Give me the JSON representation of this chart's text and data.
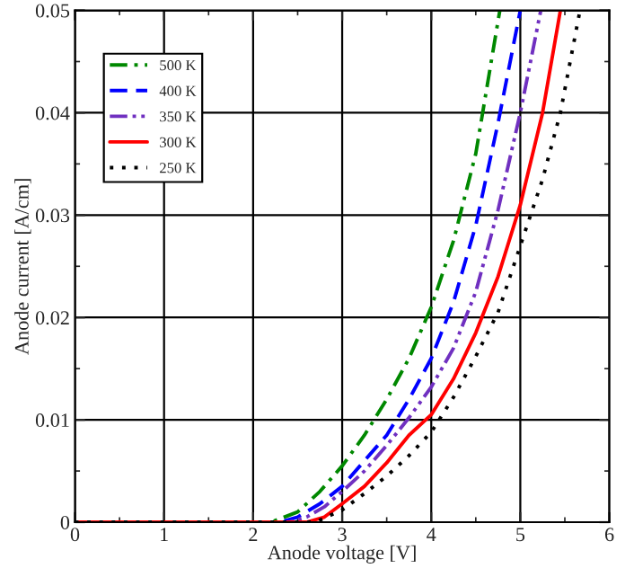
{
  "chart_data": {
    "type": "line",
    "xlabel": "Anode voltage [V]",
    "ylabel": "Anode current [A/cm]",
    "xlim": [
      0,
      6
    ],
    "ylim": [
      0,
      0.05
    ],
    "xticks": [
      0,
      1,
      2,
      3,
      4,
      5,
      6
    ],
    "yticks": [
      0,
      0.01,
      0.02,
      0.03,
      0.04,
      0.05
    ],
    "grid": true,
    "legend": "top left",
    "series": [
      {
        "name": "500 K",
        "color": "#008800",
        "line_style": "dashdot",
        "x": [
          0,
          2.2,
          2.5,
          2.75,
          3.0,
          3.25,
          3.5,
          3.75,
          4.0,
          4.25,
          4.5,
          4.77
        ],
        "values": [
          0,
          0,
          0.001,
          0.003,
          0.0055,
          0.0085,
          0.012,
          0.016,
          0.021,
          0.0275,
          0.036,
          0.05
        ]
      },
      {
        "name": "400 K",
        "color": "#0000ff",
        "line_style": "dashed",
        "x": [
          0,
          2.3,
          2.5,
          2.75,
          3.0,
          3.25,
          3.5,
          3.75,
          4.0,
          4.25,
          4.5,
          4.75,
          5.0
        ],
        "values": [
          0,
          0,
          0.0005,
          0.0018,
          0.0035,
          0.006,
          0.0085,
          0.012,
          0.016,
          0.0215,
          0.029,
          0.039,
          0.05
        ]
      },
      {
        "name": "350 K",
        "color": "#7030c0",
        "line_style": "dashdotdot",
        "x": [
          0,
          2.4,
          2.6,
          2.8,
          3.0,
          3.25,
          3.5,
          3.75,
          4.0,
          4.25,
          4.5,
          4.75,
          5.0,
          5.23
        ],
        "values": [
          0,
          0,
          0.0005,
          0.0015,
          0.003,
          0.005,
          0.0075,
          0.0102,
          0.0132,
          0.017,
          0.0225,
          0.0305,
          0.04,
          0.05
        ]
      },
      {
        "name": "300 K",
        "color": "#ff0000",
        "line_style": "solid",
        "x": [
          0,
          2.6,
          2.8,
          3.0,
          3.25,
          3.5,
          3.75,
          4.0,
          4.25,
          4.5,
          4.75,
          5.0,
          5.25,
          5.45
        ],
        "values": [
          0,
          0,
          0.0005,
          0.0018,
          0.0035,
          0.0058,
          0.0085,
          0.0105,
          0.014,
          0.0185,
          0.024,
          0.031,
          0.04,
          0.05
        ]
      },
      {
        "name": "250 K",
        "color": "#000000",
        "line_style": "dotted",
        "x": [
          0,
          2.7,
          3.0,
          3.25,
          3.5,
          3.75,
          4.0,
          4.25,
          4.5,
          4.75,
          5.0,
          5.25,
          5.45,
          5.67
        ],
        "values": [
          0,
          0,
          0.0012,
          0.0028,
          0.0045,
          0.0065,
          0.0088,
          0.0122,
          0.0162,
          0.0205,
          0.027,
          0.0335,
          0.04,
          0.05
        ]
      }
    ]
  }
}
